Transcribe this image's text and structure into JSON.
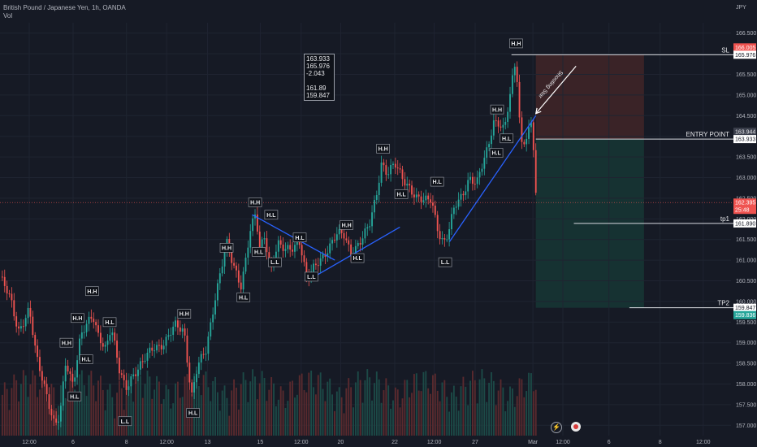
{
  "header": {
    "title": "British Pound / Japanese Yen, 1h, OANDA",
    "vol_label": "Vol"
  },
  "currency_label": "JPY",
  "stats_box": {
    "line1": "163.933",
    "line2": "165.976",
    "line3": "-2.043",
    "line4": "161.89",
    "line5": "159.847"
  },
  "colors": {
    "background": "#161a25",
    "up": "#26a69a",
    "down": "#ef5350",
    "trendline": "#2962ff",
    "stop_zone": "#3a2327",
    "target_zone": "#163232"
  },
  "chart_data": {
    "type": "candlestick",
    "symbol": "GBPJPY",
    "timeframe": "1h",
    "ylim": [
      156.75,
      166.75
    ],
    "y_ticks": [
      "157.000",
      "157.500",
      "158.000",
      "158.500",
      "159.000",
      "159.500",
      "160.000",
      "160.500",
      "161.000",
      "161.500",
      "162.000",
      "162.500",
      "163.000",
      "163.500",
      "164.000",
      "164.500",
      "165.000",
      "165.500",
      "166.000",
      "166.500"
    ],
    "x_ticks": [
      {
        "label": "12:00",
        "x": 0.04
      },
      {
        "label": "6",
        "x": 0.1
      },
      {
        "label": "8",
        "x": 0.173
      },
      {
        "label": "12:00",
        "x": 0.228
      },
      {
        "label": "13",
        "x": 0.284
      },
      {
        "label": "15",
        "x": 0.356
      },
      {
        "label": "12:00",
        "x": 0.412
      },
      {
        "label": "20",
        "x": 0.466
      },
      {
        "label": "22",
        "x": 0.54
      },
      {
        "label": "12:00",
        "x": 0.594
      },
      {
        "label": "27",
        "x": 0.65
      },
      {
        "label": "Mar",
        "x": 0.729
      },
      {
        "label": "12:00",
        "x": 0.77
      },
      {
        "label": "6",
        "x": 0.833
      },
      {
        "label": "8",
        "x": 0.903
      },
      {
        "label": "12:00",
        "x": 0.962
      }
    ],
    "price_path": [
      {
        "x": 0.0,
        "y": 160.6
      },
      {
        "x": 0.015,
        "y": 160.0
      },
      {
        "x": 0.025,
        "y": 159.3
      },
      {
        "x": 0.04,
        "y": 159.8
      },
      {
        "x": 0.05,
        "y": 158.6
      },
      {
        "x": 0.062,
        "y": 157.9
      },
      {
        "x": 0.075,
        "y": 157.0
      },
      {
        "x": 0.082,
        "y": 157.2
      },
      {
        "x": 0.09,
        "y": 158.5
      },
      {
        "x": 0.1,
        "y": 158.0
      },
      {
        "x": 0.11,
        "y": 159.2
      },
      {
        "x": 0.118,
        "y": 159.4
      },
      {
        "x": 0.127,
        "y": 159.6
      },
      {
        "x": 0.134,
        "y": 159.2
      },
      {
        "x": 0.145,
        "y": 158.9
      },
      {
        "x": 0.152,
        "y": 159.4
      },
      {
        "x": 0.163,
        "y": 158.3
      },
      {
        "x": 0.172,
        "y": 157.9
      },
      {
        "x": 0.18,
        "y": 158.2
      },
      {
        "x": 0.195,
        "y": 158.5
      },
      {
        "x": 0.21,
        "y": 158.9
      },
      {
        "x": 0.225,
        "y": 159.0
      },
      {
        "x": 0.24,
        "y": 159.4
      },
      {
        "x": 0.252,
        "y": 159.3
      },
      {
        "x": 0.262,
        "y": 157.7
      },
      {
        "x": 0.27,
        "y": 158.4
      },
      {
        "x": 0.282,
        "y": 158.8
      },
      {
        "x": 0.295,
        "y": 160.2
      },
      {
        "x": 0.31,
        "y": 161.4
      },
      {
        "x": 0.318,
        "y": 160.9
      },
      {
        "x": 0.33,
        "y": 160.4
      },
      {
        "x": 0.342,
        "y": 161.7
      },
      {
        "x": 0.35,
        "y": 162.1
      },
      {
        "x": 0.355,
        "y": 161.2
      },
      {
        "x": 0.362,
        "y": 161.6
      },
      {
        "x": 0.37,
        "y": 160.8
      },
      {
        "x": 0.38,
        "y": 161.4
      },
      {
        "x": 0.39,
        "y": 161.2
      },
      {
        "x": 0.4,
        "y": 161.3
      },
      {
        "x": 0.41,
        "y": 161.5
      },
      {
        "x": 0.42,
        "y": 160.5
      },
      {
        "x": 0.43,
        "y": 160.8
      },
      {
        "x": 0.445,
        "y": 161.2
      },
      {
        "x": 0.46,
        "y": 161.6
      },
      {
        "x": 0.47,
        "y": 161.6
      },
      {
        "x": 0.48,
        "y": 161.2
      },
      {
        "x": 0.495,
        "y": 161.5
      },
      {
        "x": 0.505,
        "y": 161.8
      },
      {
        "x": 0.515,
        "y": 162.6
      },
      {
        "x": 0.522,
        "y": 163.4
      },
      {
        "x": 0.53,
        "y": 163.1
      },
      {
        "x": 0.54,
        "y": 163.3
      },
      {
        "x": 0.55,
        "y": 163.0
      },
      {
        "x": 0.56,
        "y": 162.8
      },
      {
        "x": 0.57,
        "y": 162.5
      },
      {
        "x": 0.58,
        "y": 162.4
      },
      {
        "x": 0.59,
        "y": 162.5
      },
      {
        "x": 0.6,
        "y": 161.7
      },
      {
        "x": 0.607,
        "y": 161.4
      },
      {
        "x": 0.613,
        "y": 161.6
      },
      {
        "x": 0.622,
        "y": 162.3
      },
      {
        "x": 0.632,
        "y": 162.6
      },
      {
        "x": 0.642,
        "y": 163.0
      },
      {
        "x": 0.652,
        "y": 162.8
      },
      {
        "x": 0.66,
        "y": 163.3
      },
      {
        "x": 0.668,
        "y": 163.8
      },
      {
        "x": 0.675,
        "y": 164.4
      },
      {
        "x": 0.683,
        "y": 164.3
      },
      {
        "x": 0.69,
        "y": 164.1
      },
      {
        "x": 0.697,
        "y": 164.9
      },
      {
        "x": 0.702,
        "y": 165.5
      },
      {
        "x": 0.706,
        "y": 165.9
      },
      {
        "x": 0.71,
        "y": 164.6
      },
      {
        "x": 0.714,
        "y": 163.8
      },
      {
        "x": 0.72,
        "y": 164.0
      },
      {
        "x": 0.728,
        "y": 164.3
      },
      {
        "x": 0.733,
        "y": 162.6
      }
    ],
    "swing_labels": [
      {
        "text": "H.H",
        "x": 0.126,
        "y": 160.25
      },
      {
        "text": "H.H",
        "x": 0.106,
        "y": 159.6
      },
      {
        "text": "H.L",
        "x": 0.15,
        "y": 159.5
      },
      {
        "text": "H.H",
        "x": 0.091,
        "y": 159.0
      },
      {
        "text": "H.L",
        "x": 0.118,
        "y": 158.6
      },
      {
        "text": "H.L",
        "x": 0.102,
        "y": 157.7
      },
      {
        "text": "L.L",
        "x": 0.171,
        "y": 157.1
      },
      {
        "text": "H.H",
        "x": 0.252,
        "y": 159.7
      },
      {
        "text": "H.L",
        "x": 0.264,
        "y": 157.3
      },
      {
        "text": "H.H",
        "x": 0.31,
        "y": 161.3
      },
      {
        "text": "H.L",
        "x": 0.333,
        "y": 160.1
      },
      {
        "text": "H.H",
        "x": 0.349,
        "y": 162.4
      },
      {
        "text": "H.L",
        "x": 0.371,
        "y": 162.1
      },
      {
        "text": "H.L",
        "x": 0.354,
        "y": 161.2
      },
      {
        "text": "L.L",
        "x": 0.376,
        "y": 160.95
      },
      {
        "text": "H.L",
        "x": 0.41,
        "y": 161.55
      },
      {
        "text": "L.L",
        "x": 0.426,
        "y": 160.6
      },
      {
        "text": "H.H",
        "x": 0.474,
        "y": 161.85
      },
      {
        "text": "H.L",
        "x": 0.489,
        "y": 161.05
      },
      {
        "text": "H.H",
        "x": 0.524,
        "y": 163.7
      },
      {
        "text": "H.L",
        "x": 0.549,
        "y": 162.6
      },
      {
        "text": "H.L",
        "x": 0.598,
        "y": 162.9
      },
      {
        "text": "L.L",
        "x": 0.609,
        "y": 160.95
      },
      {
        "text": "H.H",
        "x": 0.68,
        "y": 164.65
      },
      {
        "text": "H.L",
        "x": 0.693,
        "y": 163.95
      },
      {
        "text": "H.L",
        "x": 0.679,
        "y": 163.6
      },
      {
        "text": "H.H",
        "x": 0.706,
        "y": 166.25
      }
    ],
    "trendlines": [
      {
        "from": {
          "x": 0.345,
          "y": 162.1
        },
        "to": {
          "x": 0.458,
          "y": 161.0
        }
      },
      {
        "from": {
          "x": 0.425,
          "y": 160.55
        },
        "to": {
          "x": 0.547,
          "y": 161.8
        }
      },
      {
        "from": {
          "x": 0.615,
          "y": 161.45
        },
        "to": {
          "x": 0.733,
          "y": 164.5
        }
      }
    ],
    "position": {
      "start_x": 0.733,
      "end_x": 0.881,
      "entry": 163.933,
      "stop": 165.976,
      "tp1": 161.89,
      "tp2": 159.847,
      "level_labels": {
        "stop": "SL",
        "entry": "ENTRY POINT",
        "tp1": "tp1",
        "tp2": "TP2"
      }
    },
    "annotation": {
      "text": "Shooting Star",
      "arrow_from": {
        "x": 0.788,
        "y": 165.7
      },
      "arrow_to": {
        "x": 0.733,
        "y": 164.55
      }
    },
    "axis_tags": {
      "tp2": "159.847",
      "tp2_live": "159.836",
      "tp1": "161.890",
      "entry_live": "163.944",
      "entry": "163.933",
      "stop_live": "166.005",
      "stop": "165.976",
      "current_price": "162.395",
      "countdown": "25:48"
    }
  }
}
